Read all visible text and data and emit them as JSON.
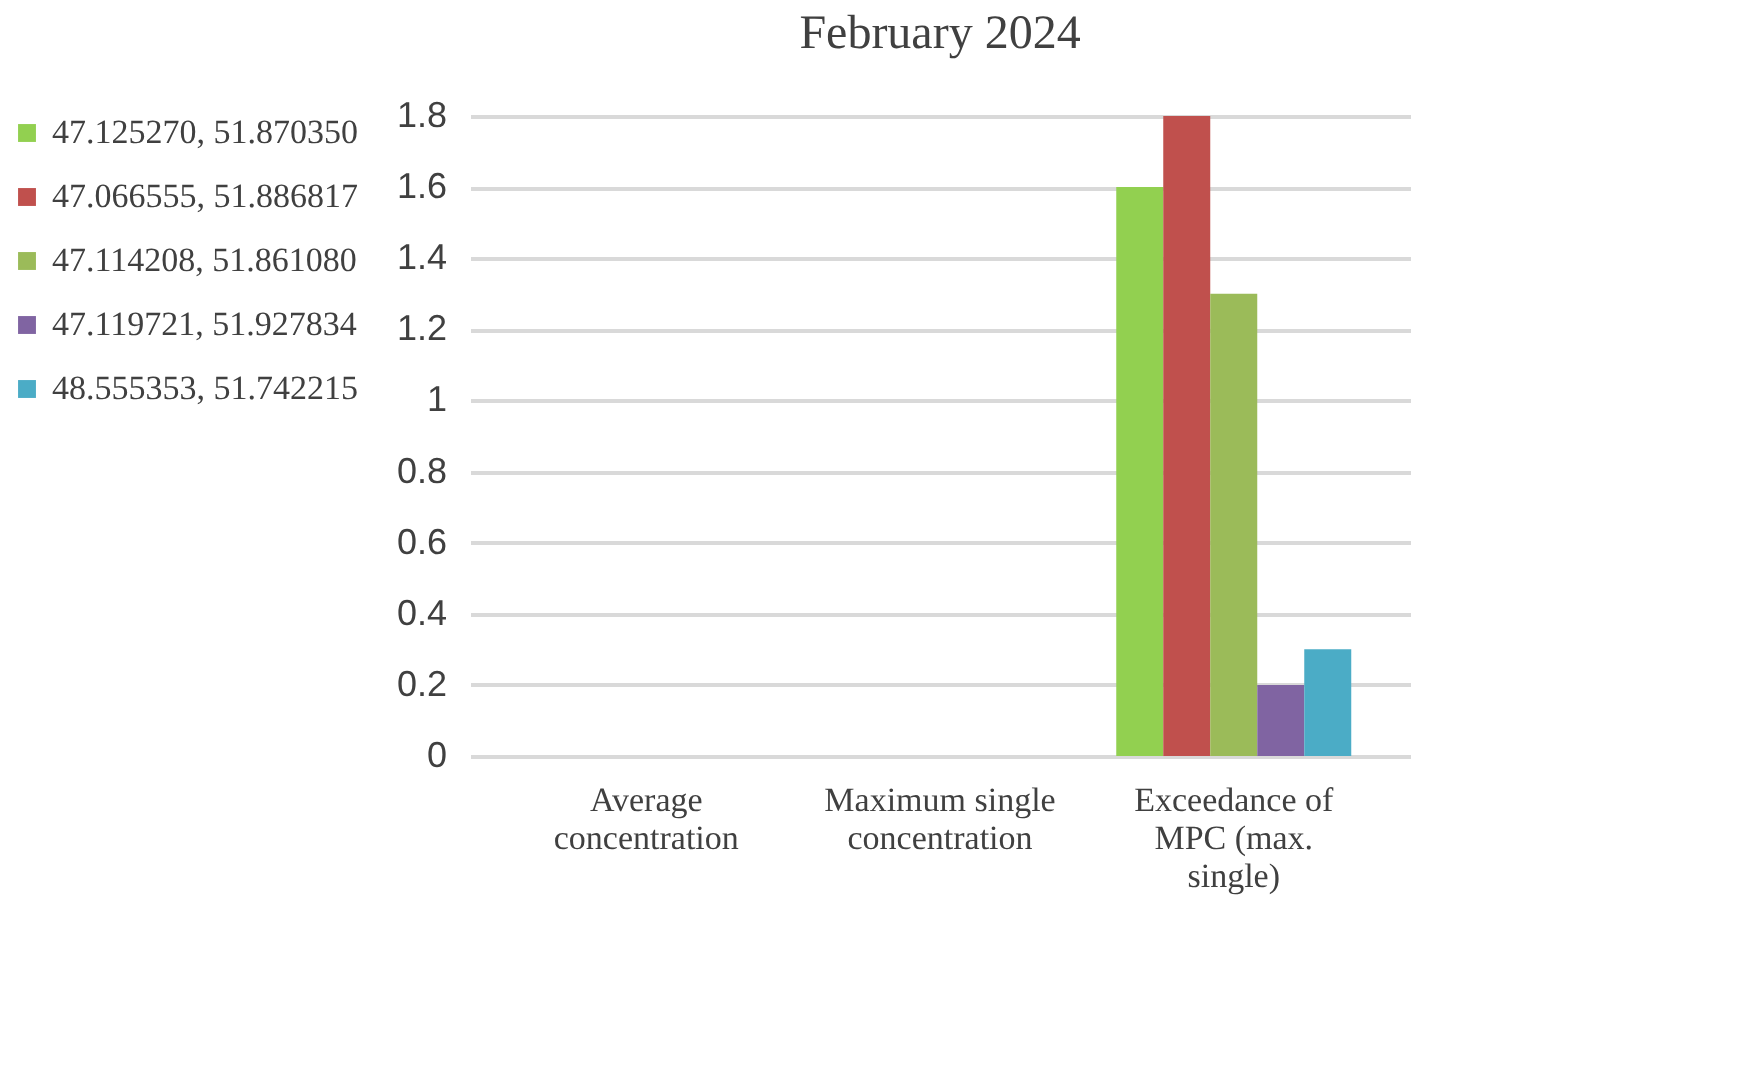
{
  "chart_data": {
    "type": "bar",
    "title": "February  2024",
    "categories": [
      "Average concentration",
      "Maximum single concentration",
      "Exceedance of MPC (max. single)"
    ],
    "series": [
      {
        "name": "47.125270, 51.870350",
        "color": "#92d050",
        "values": [
          0,
          0,
          1.6
        ]
      },
      {
        "name": "47.066555, 51.886817",
        "color": "#c0504d",
        "values": [
          0,
          0,
          1.8
        ]
      },
      {
        "name": "47.114208, 51.861080",
        "color": "#9bbb59",
        "values": [
          0,
          0,
          1.3
        ]
      },
      {
        "name": "47.119721, 51.927834",
        "color": "#8064a2",
        "values": [
          0,
          0,
          0.2
        ]
      },
      {
        "name": "48.555353, 51.742215",
        "color": "#4bacc6",
        "values": [
          0,
          0,
          0.3
        ]
      }
    ],
    "ylim": [
      0,
      1.8
    ],
    "yticks": [
      0,
      0.2,
      0.4,
      0.6,
      0.8,
      1,
      1.2,
      1.4,
      1.6,
      1.8
    ],
    "grid": "y",
    "legend": "left"
  }
}
